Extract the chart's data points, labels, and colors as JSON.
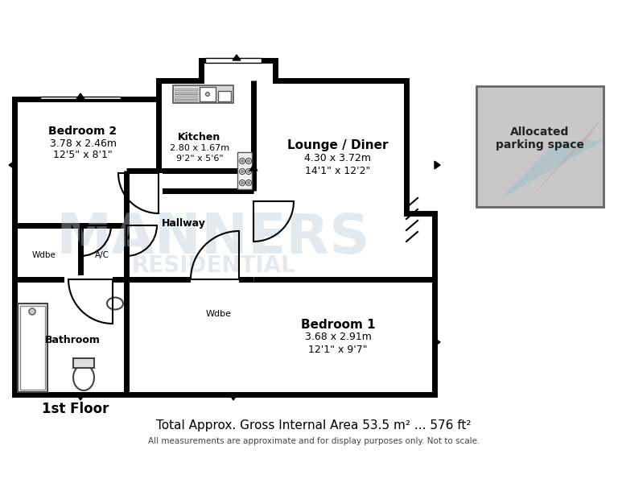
{
  "bg_color": "#ffffff",
  "wall_color": "#000000",
  "wall_lw": 5,
  "floor_label": "1st Floor",
  "total_area": "Total Approx. Gross Internal Area 53.5 m² ... 576 ft²",
  "disclaimer": "All measurements are approximate and for display purposes only. Not to scale.",
  "allocated_label": "Allocated\nparking space",
  "parking_fill": "#c8c8c8",
  "watermark1": "MANNERS",
  "watermark2": "RESIDENTIAL",
  "room_bedroom2_label": "Bedroom 2",
  "room_bedroom2_dims1": "3.78 x 2.46m",
  "room_bedroom2_dims2": "12'5\" x 8'1\"",
  "room_kitchen_label": "Kitchen",
  "room_kitchen_dims1": "2.80 x 1.67m",
  "room_kitchen_dims2": "9'2\" x 5'6\"",
  "room_lounge_label": "Lounge / Diner",
  "room_lounge_dims1": "4.30 x 3.72m",
  "room_lounge_dims2": "14'1\" x 12'2\"",
  "room_hallway_label": "Hallway",
  "room_bathroom_label": "Bathroom",
  "room_bedroom1_label": "Bedroom 1",
  "room_bedroom1_dims1": "3.68 x 2.91m",
  "room_bedroom1_dims2": "12'1\" x 9'7\"",
  "label_wdbe": "Wdbe",
  "label_ac": "A/C"
}
